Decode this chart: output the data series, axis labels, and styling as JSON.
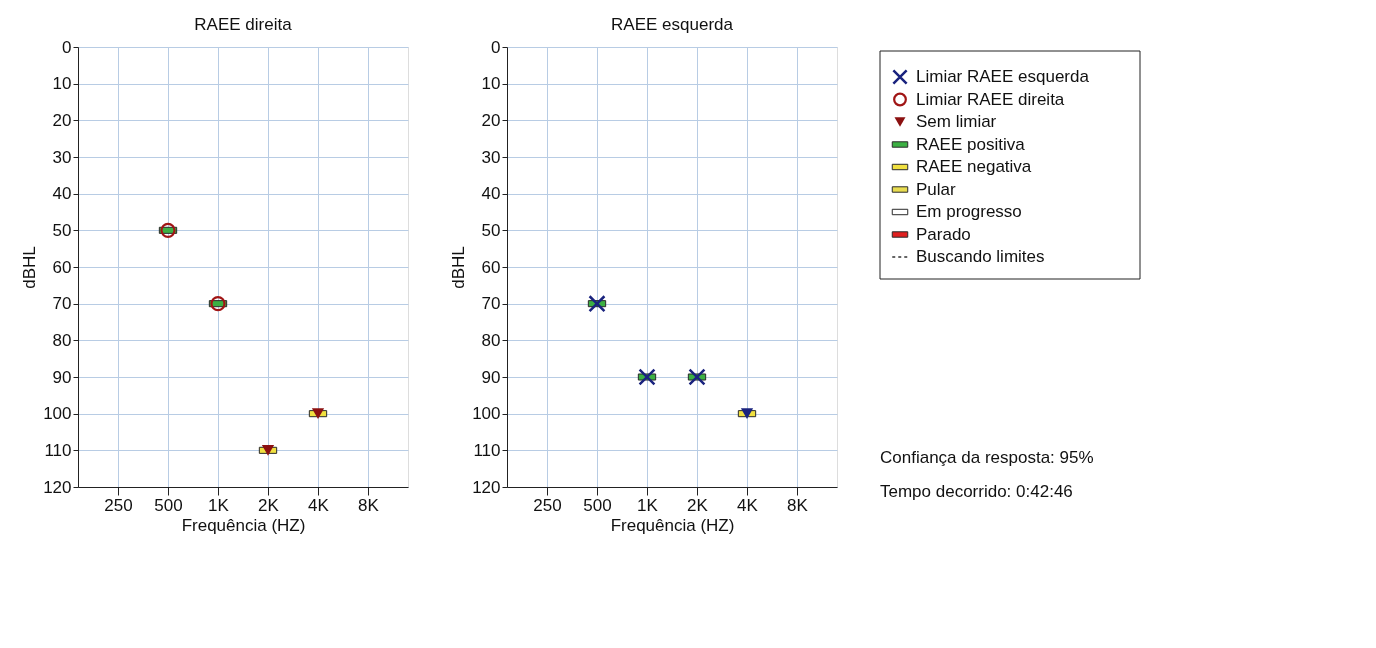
{
  "chart_data": [
    {
      "type": "scatter",
      "title": "RAEE direita",
      "xlabel": "Frequência (HZ)",
      "ylabel": "dBHL",
      "categories": [
        "250",
        "500",
        "1K",
        "2K",
        "4K",
        "8K"
      ],
      "ylim": [
        120,
        0
      ],
      "yticks": [
        0,
        10,
        20,
        30,
        40,
        50,
        60,
        70,
        80,
        90,
        100,
        110,
        120
      ],
      "grid": true,
      "legend": "right",
      "series": [
        {
          "name": "Limiar RAEE esquerda",
          "color": "#1a237e",
          "marker": "cross",
          "values": [
            null,
            null,
            null,
            null,
            null,
            null
          ]
        },
        {
          "name": "Limiar RAEE direita",
          "color": "#a01515",
          "marker": "circle",
          "values": [
            null,
            50,
            70,
            null,
            null,
            null
          ]
        },
        {
          "name": "Sem limiar",
          "color": "#8b1010",
          "marker": "triangle",
          "values": [
            null,
            null,
            null,
            110,
            100,
            null
          ]
        },
        {
          "name": "RAEE positiva",
          "color": "#3cb043",
          "marker": "square",
          "values": [
            null,
            50,
            70,
            null,
            null,
            null
          ]
        },
        {
          "name": "RAEE negativa",
          "color": "#f0e040",
          "marker": "square",
          "values": [
            null,
            null,
            null,
            110,
            100,
            null
          ]
        },
        {
          "name": "Pular",
          "color": "#e8dc50",
          "marker": "square",
          "values": [
            null,
            null,
            null,
            null,
            null,
            null
          ]
        },
        {
          "name": "Em progresso",
          "color": "#ffffff",
          "marker": "square",
          "values": [
            null,
            null,
            null,
            null,
            null,
            null
          ]
        },
        {
          "name": "Parado",
          "color": "#e02020",
          "marker": "square",
          "values": [
            null,
            null,
            null,
            null,
            null,
            null
          ]
        },
        {
          "name": "Buscando limites",
          "color": "#333333",
          "marker": "none",
          "line_style": "dashed",
          "values": [
            null,
            null,
            null,
            null,
            null,
            null
          ]
        }
      ],
      "annotations": [
        "Confiança da resposta: 95%",
        "Tempo decorrido: 0:42:46"
      ]
    },
    {
      "type": "scatter",
      "title": "RAEE esquerda",
      "xlabel": "Frequência (HZ)",
      "ylabel": "dBHL",
      "categories": [
        "250",
        "500",
        "1K",
        "2K",
        "4K",
        "8K"
      ],
      "ylim": [
        120,
        0
      ],
      "yticks": [
        0,
        10,
        20,
        30,
        40,
        50,
        60,
        70,
        80,
        90,
        100,
        110,
        120
      ],
      "grid": true,
      "series": [
        {
          "color": "#3cb043",
          "marker": "square",
          "values": [
            null,
            70,
            90,
            90,
            null,
            null
          ]
        },
        {
          "color": "#f0e040",
          "marker": "square",
          "values": [
            null,
            null,
            null,
            null,
            100,
            null
          ]
        },
        {
          "color": "#1a237e",
          "marker": "cross",
          "values": [
            null,
            70,
            90,
            90,
            null,
            null
          ]
        },
        {
          "color": "#1a237e",
          "marker": "triangle",
          "values": [
            null,
            null,
            null,
            null,
            100,
            null
          ]
        }
      ]
    }
  ]
}
